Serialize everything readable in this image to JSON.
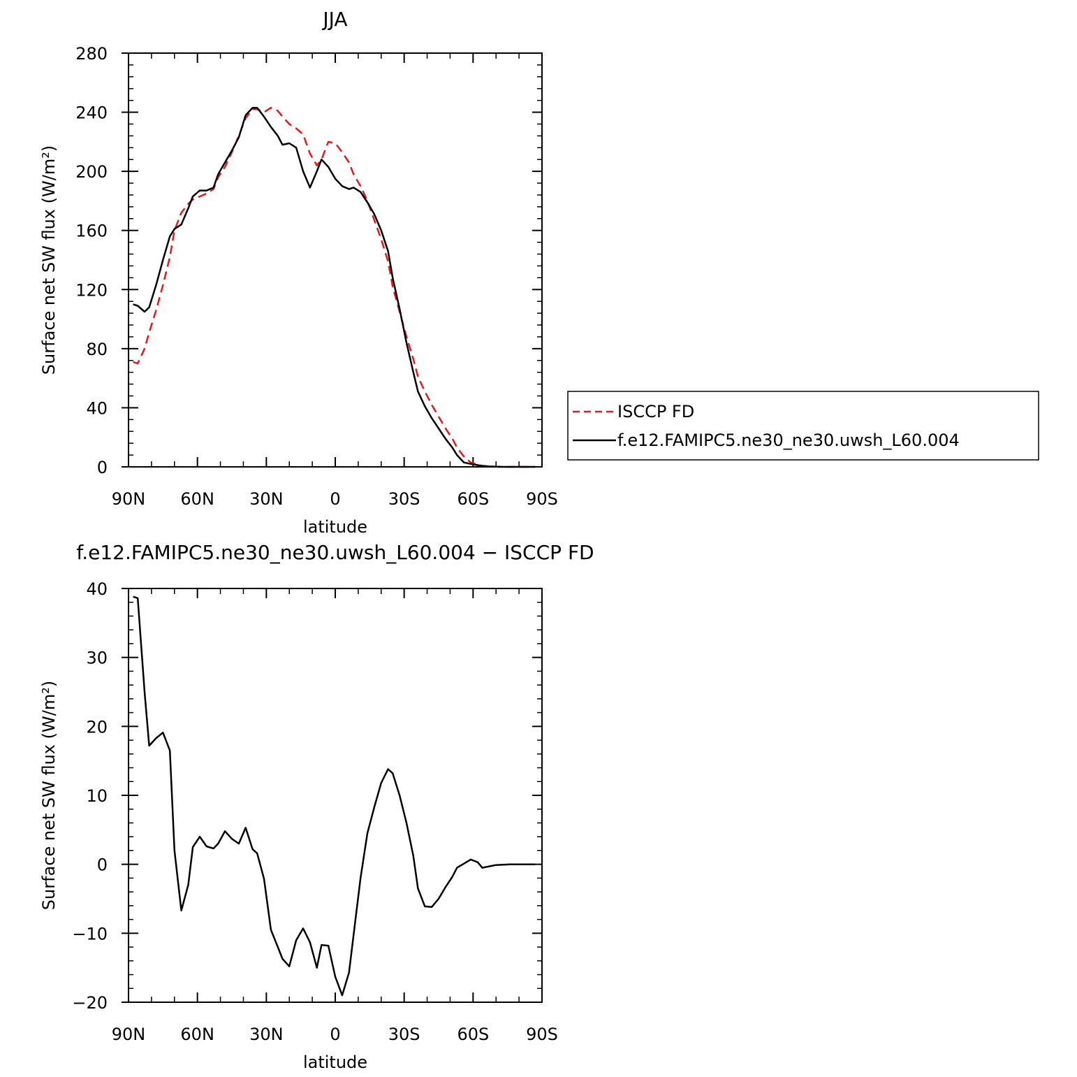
{
  "chart_data": [
    {
      "type": "line",
      "title": "JJA",
      "xlabel": "latitude",
      "ylabel": "Surface net SW flux (W/m²)",
      "xlim": [
        90,
        -90
      ],
      "ylim": [
        0,
        280
      ],
      "xticks": [
        90,
        60,
        30,
        0,
        -30,
        -60,
        -90
      ],
      "xticklabels": [
        "90N",
        "60N",
        "30N",
        "0",
        "30S",
        "60S",
        "90S"
      ],
      "yticks": [
        0,
        40,
        80,
        120,
        160,
        200,
        240,
        280
      ],
      "yticklabels": [
        "0",
        "40",
        "80",
        "120",
        "160",
        "200",
        "240",
        "280"
      ],
      "grid": false,
      "legend": "right",
      "x": [
        88,
        86,
        83,
        81,
        78,
        75,
        72,
        70,
        67,
        64,
        62,
        59,
        56,
        53,
        51,
        48,
        45,
        42,
        39,
        36,
        34,
        31,
        28,
        25,
        23,
        20,
        17,
        14,
        11,
        8,
        6,
        3,
        0,
        -3,
        -6,
        -8,
        -11,
        -14,
        -17,
        -20,
        -23,
        -25,
        -28,
        -31,
        -34,
        -36,
        -39,
        -42,
        -45,
        -48,
        -51,
        -53,
        -56,
        -59,
        -62,
        -64,
        -67,
        -70,
        -73,
        -76,
        -78,
        -81,
        -84,
        -87
      ],
      "series": [
        {
          "name": "ISCCP FD",
          "color": "#e8171b",
          "dash": true,
          "values": [
            71,
            70,
            80,
            91,
            106,
            123,
            142,
            160,
            172,
            178,
            181,
            183,
            185,
            188,
            196,
            203,
            213,
            224,
            236,
            242,
            242,
            240,
            243,
            241,
            237,
            232,
            229,
            225,
            212,
            204,
            208,
            220,
            219,
            213,
            206,
            198,
            190,
            180,
            167,
            154,
            139,
            122,
            105,
            88,
            73,
            61,
            51,
            42,
            34,
            26,
            19,
            13,
            7,
            3,
            1.5,
            0.8,
            0.3,
            0.1,
            0,
            0,
            0,
            0,
            0,
            0
          ]
        },
        {
          "name": "f.e12.FAMIPC5.ne30_ne30.uwsh_L60.004",
          "color": "#000000",
          "dash": false,
          "values": [
            110,
            109,
            105,
            108,
            123,
            140,
            156,
            161,
            164,
            175,
            183,
            187,
            187,
            189,
            198,
            206,
            214,
            223,
            238,
            243,
            243,
            237,
            230,
            224,
            218,
            219,
            216,
            200,
            189,
            200,
            208,
            203,
            195,
            190,
            188,
            189,
            186,
            179,
            171,
            160,
            146,
            128,
            107,
            84,
            64,
            51,
            41,
            33,
            26,
            19,
            13,
            8,
            3,
            2,
            1.2,
            0.5,
            0.3,
            0.1,
            0,
            0,
            0,
            0,
            0,
            0
          ]
        }
      ]
    },
    {
      "type": "line",
      "title": "f.e12.FAMIPC5.ne30_ne30.uwsh_L60.004 − ISCCP FD",
      "xlabel": "latitude",
      "ylabel": "Surface net SW flux (W/m²)",
      "xlim": [
        90,
        -90
      ],
      "ylim": [
        -20,
        40
      ],
      "xticks": [
        90,
        60,
        30,
        0,
        -30,
        -60,
        -90
      ],
      "xticklabels": [
        "90N",
        "60N",
        "30N",
        "0",
        "30S",
        "60S",
        "90S"
      ],
      "yticks": [
        -20,
        -10,
        0,
        10,
        20,
        30,
        40
      ],
      "yticklabels": [
        "−20",
        "−10",
        "0",
        "10",
        "20",
        "30",
        "40"
      ],
      "grid": false,
      "x": [
        88,
        86,
        83,
        81,
        78,
        75,
        72,
        70,
        67,
        64,
        62,
        59,
        56,
        53,
        51,
        48,
        45,
        42,
        39,
        36,
        34,
        31,
        28,
        25,
        23,
        20,
        17,
        14,
        11,
        8,
        6,
        3,
        0,
        -3,
        -6,
        -8,
        -11,
        -14,
        -17,
        -20,
        -23,
        -25,
        -28,
        -31,
        -34,
        -36,
        -39,
        -42,
        -45,
        -48,
        -51,
        -53,
        -56,
        -59,
        -62,
        -64,
        -67,
        -70,
        -73,
        -76,
        -78,
        -81,
        -84,
        -87
      ],
      "series": [
        {
          "color": "#000000",
          "dash": false,
          "values": [
            38.8,
            38.6,
            25,
            17.2,
            18.3,
            19.1,
            16.5,
            2,
            -6.7,
            -3,
            2.5,
            4,
            2.6,
            2.3,
            3,
            4.8,
            3.7,
            3,
            5.3,
            2.2,
            1.6,
            -2.1,
            -9.5,
            -12,
            -13.7,
            -14.8,
            -11,
            -9.3,
            -11.3,
            -15,
            -11.7,
            -11.8,
            -16.3,
            -19,
            -15.7,
            -10.2,
            -2,
            4.5,
            8.3,
            11.8,
            13.8,
            13.2,
            10,
            6,
            1.2,
            -3.5,
            -6.1,
            -6.2,
            -5,
            -3.3,
            -1.8,
            -0.5,
            0.1,
            0.7,
            0.3,
            -0.5,
            -0.3,
            -0.1,
            -0.05,
            0,
            0,
            0,
            0,
            0
          ]
        }
      ]
    }
  ]
}
